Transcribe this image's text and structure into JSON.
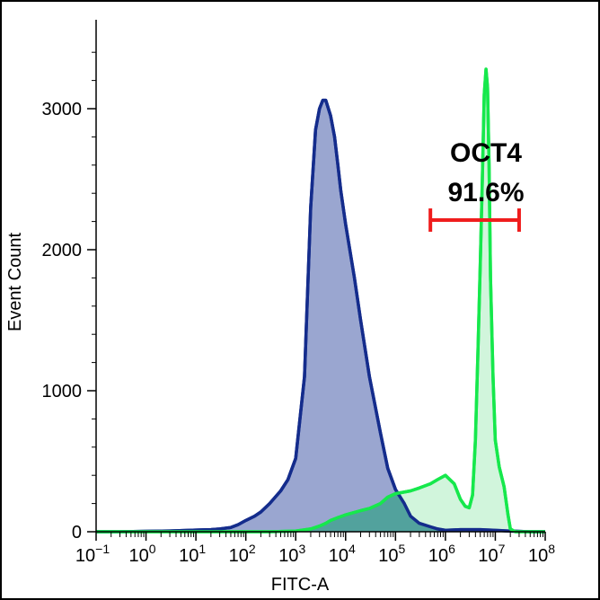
{
  "chart_data": {
    "type": "area",
    "xlabel": "FITC-A",
    "ylabel": "Event Count",
    "xscale": "log",
    "xlim": [
      0.1,
      100000000
    ],
    "ylim": [
      0,
      3500
    ],
    "x_ticks": [
      {
        "value": 0.1,
        "base": "10",
        "exp": "−1"
      },
      {
        "value": 1,
        "base": "10",
        "exp": "0"
      },
      {
        "value": 10,
        "base": "10",
        "exp": "1"
      },
      {
        "value": 100,
        "base": "10",
        "exp": "2"
      },
      {
        "value": 1000,
        "base": "10",
        "exp": "3"
      },
      {
        "value": 10000,
        "base": "10",
        "exp": "4"
      },
      {
        "value": 100000,
        "base": "10",
        "exp": "5"
      },
      {
        "value": 1000000,
        "base": "10",
        "exp": "6"
      },
      {
        "value": 10000000,
        "base": "10",
        "exp": "7"
      },
      {
        "value": 100000000,
        "base": "10",
        "exp": "8"
      }
    ],
    "y_ticks": [
      {
        "value": 0,
        "label": "0"
      },
      {
        "value": 1000,
        "label": "1000"
      },
      {
        "value": 2000,
        "label": "2000"
      },
      {
        "value": 3000,
        "label": "3000"
      }
    ],
    "grid": false,
    "series": [
      {
        "fill": "#9aa6d0",
        "stroke": "#142c8c",
        "x": [
          0.1,
          0.3,
          1,
          3,
          10,
          20,
          30,
          50,
          70,
          100,
          150,
          200,
          300,
          500,
          700,
          1000,
          1500,
          2000,
          2500,
          3000,
          3500,
          4000,
          5000,
          6000,
          7000,
          8000,
          10000,
          15000,
          20000,
          30000,
          50000,
          70000,
          100000,
          150000,
          200000,
          300000,
          500000,
          700000,
          1000000,
          2000000,
          3000000,
          5000000,
          10000000,
          20000000,
          50000000,
          100000000
        ],
        "values": [
          0,
          0,
          3,
          6,
          12,
          15,
          20,
          30,
          50,
          80,
          110,
          140,
          200,
          290,
          370,
          520,
          1100,
          2300,
          2850,
          3000,
          3060,
          3060,
          2950,
          2800,
          2600,
          2420,
          2180,
          1800,
          1500,
          1100,
          700,
          450,
          300,
          200,
          110,
          60,
          35,
          20,
          10,
          15,
          15,
          15,
          10,
          5,
          0,
          0
        ]
      },
      {
        "fill": "#b2eec4",
        "stroke": "#16e84c",
        "x": [
          0.1,
          1,
          10,
          100,
          300,
          1000,
          2000,
          3000,
          4000,
          5000,
          7000,
          10000,
          20000,
          30000,
          50000,
          70000,
          100000,
          200000,
          300000,
          500000,
          700000,
          1000000,
          1500000,
          2000000,
          2500000,
          3000000,
          3500000,
          4000000,
          4500000,
          5000000,
          5500000,
          6000000,
          6500000,
          7000000,
          7500000,
          8000000,
          9000000,
          10000000,
          12000000,
          15000000,
          18000000,
          20000000,
          25000000,
          100000000
        ],
        "values": [
          0,
          0,
          0,
          0,
          0,
          5,
          20,
          40,
          60,
          80,
          100,
          120,
          150,
          165,
          200,
          245,
          270,
          290,
          310,
          340,
          370,
          400,
          340,
          230,
          180,
          170,
          260,
          650,
          1300,
          1900,
          2500,
          3100,
          3280,
          3150,
          2600,
          1800,
          1100,
          650,
          460,
          320,
          120,
          20,
          0,
          0
        ]
      }
    ],
    "annotation": {
      "title": "OCT4",
      "value": "91.6%",
      "gate_color": "#ef1d1d",
      "gate_x": [
        500000,
        30000000
      ],
      "gate_y": 2210
    }
  }
}
